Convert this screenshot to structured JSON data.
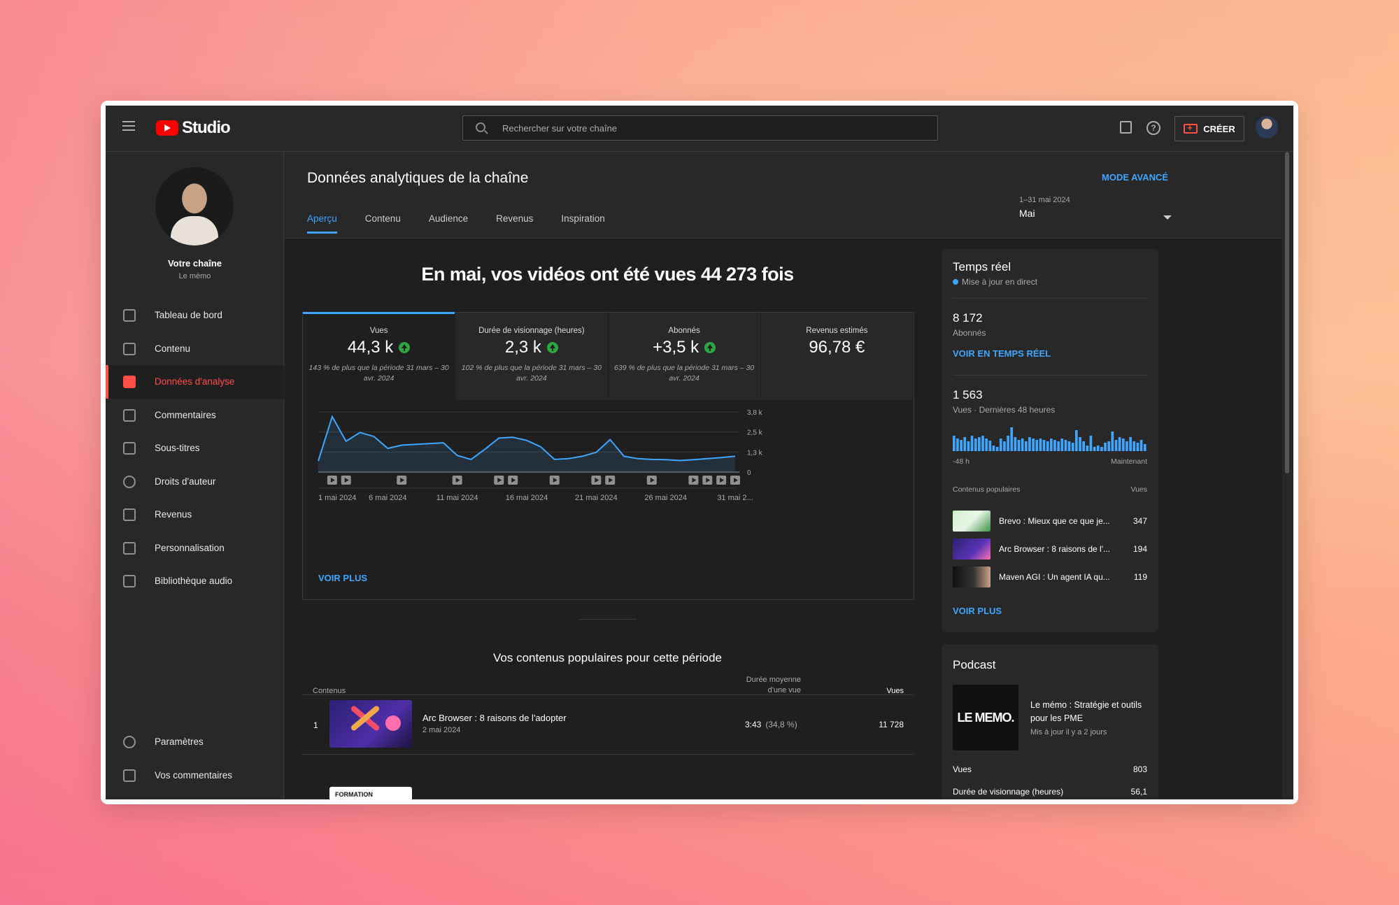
{
  "app": {
    "logo_text": "Studio",
    "search_placeholder": "Rechercher sur votre chaîne",
    "create_label": "CRÉER"
  },
  "sidebar": {
    "channel_name": "Votre chaîne",
    "channel_sub": "Le mémo",
    "items": [
      {
        "label": "Tableau de bord",
        "icon": "dashboard-icon"
      },
      {
        "label": "Contenu",
        "icon": "content-icon"
      },
      {
        "label": "Données d'analyse",
        "icon": "analytics-icon",
        "active": true
      },
      {
        "label": "Commentaires",
        "icon": "comments-icon"
      },
      {
        "label": "Sous-titres",
        "icon": "subtitles-icon"
      },
      {
        "label": "Droits d'auteur",
        "icon": "copyright-icon"
      },
      {
        "label": "Revenus",
        "icon": "dollar-icon"
      },
      {
        "label": "Personnalisation",
        "icon": "magic-wand-icon"
      },
      {
        "label": "Bibliothèque audio",
        "icon": "audio-library-icon"
      }
    ],
    "bottom": [
      {
        "label": "Paramètres",
        "icon": "gear-icon"
      },
      {
        "label": "Vos commentaires",
        "icon": "feedback-icon"
      }
    ]
  },
  "main": {
    "title": "Données analytiques de la chaîne",
    "advanced_mode": "MODE AVANCÉ",
    "tabs": [
      "Aperçu",
      "Contenu",
      "Audience",
      "Revenus",
      "Inspiration"
    ],
    "date_range": "1–31 mai 2024",
    "date_value": "Mai",
    "headline": "En mai, vos vidéos ont été vues 44 273 fois",
    "metrics": [
      {
        "label": "Vues",
        "value": "44,3 k",
        "note": "143 % de plus que la période 31 mars – 30 avr. 2024",
        "up": true
      },
      {
        "label": "Durée de visionnage (heures)",
        "value": "2,3 k",
        "note": "102 % de plus que la période 31 mars – 30 avr. 2024",
        "up": true
      },
      {
        "label": "Abonnés",
        "value": "+3,5 k",
        "note": "639 % de plus que la période 31 mars – 30 avr. 2024",
        "up": true
      },
      {
        "label": "Revenus estimés",
        "value": "96,78 €",
        "note": "",
        "up": false
      }
    ],
    "voir_plus": "VOIR PLUS",
    "popular_title": "Vos contenus populaires pour cette période",
    "table": {
      "col_content": "Contenus",
      "col_duration_1": "Durée moyenne",
      "col_duration_2": "d'une vue",
      "col_views": "Vues",
      "rows": [
        {
          "rank": "1",
          "title": "Arc Browser : 8 raisons de l'adopter",
          "date": "2 mai 2024",
          "duration": "3:43",
          "duration_pct": "(34,8 %)",
          "views": "11 728"
        }
      ],
      "row2_thumb_text": "FORMATION"
    }
  },
  "chart_data": {
    "type": "area",
    "x_labels": [
      "1 mai 2024",
      "6 mai 2024",
      "11 mai 2024",
      "16 mai 2024",
      "21 mai 2024",
      "26 mai 2024",
      "31 mai 2..."
    ],
    "y_ticks": [
      "3,8 k",
      "2,5 k",
      "1,3 k",
      "0"
    ],
    "ylim": [
      0,
      3800
    ],
    "values": [
      700,
      3500,
      1950,
      2500,
      2250,
      1500,
      1700,
      1750,
      1800,
      1850,
      1050,
      800,
      1450,
      2150,
      2200,
      2000,
      1600,
      800,
      850,
      1000,
      1250,
      2050,
      1000,
      850,
      800,
      780,
      730,
      780,
      850,
      920,
      1000
    ],
    "video_markers_days": [
      2,
      3,
      7,
      11,
      14,
      15,
      18,
      21,
      22,
      25,
      28,
      29,
      30,
      31
    ],
    "grid": true,
    "color": "#3ea6ff"
  },
  "realtime": {
    "title": "Temps réel",
    "live": "Mise à jour en direct",
    "subs_value": "8 172",
    "subs_label": "Abonnés",
    "see_realtime": "VOIR EN TEMPS RÉEL",
    "views_value": "1 563",
    "views_label": "Vues · Dernières 48 heures",
    "bar_left": "-48 h",
    "bar_right": "Maintenant",
    "bars": [
      22,
      18,
      16,
      20,
      14,
      22,
      18,
      20,
      22,
      18,
      15,
      8,
      6,
      18,
      14,
      22,
      34,
      20,
      16,
      18,
      14,
      20,
      18,
      16,
      18,
      16,
      14,
      18,
      16,
      14,
      18,
      16,
      14,
      12,
      30,
      20,
      14,
      8,
      22,
      6,
      8,
      6,
      12,
      14,
      28,
      16,
      20,
      18,
      14,
      20,
      14,
      12,
      16,
      10
    ],
    "popular_header": "Contenus populaires",
    "popular_views_header": "Vues",
    "popular": [
      {
        "title": "Brevo : Mieux que ce que je...",
        "views": "347"
      },
      {
        "title": "Arc Browser : 8 raisons de l'...",
        "views": "194"
      },
      {
        "title": "Maven AGI : Un agent IA qu...",
        "views": "119"
      }
    ],
    "voir_plus": "VOIR PLUS"
  },
  "podcast": {
    "title": "Podcast",
    "cover_text": "LE MEMO.",
    "show_title": "Le mémo : Stratégie et outils pour les PME",
    "updated": "Mis à jour il y a 2 jours",
    "stats": [
      {
        "label": "Vues",
        "value": "803"
      },
      {
        "label": "Durée de visionnage (heures)",
        "value": "56,1"
      }
    ]
  }
}
